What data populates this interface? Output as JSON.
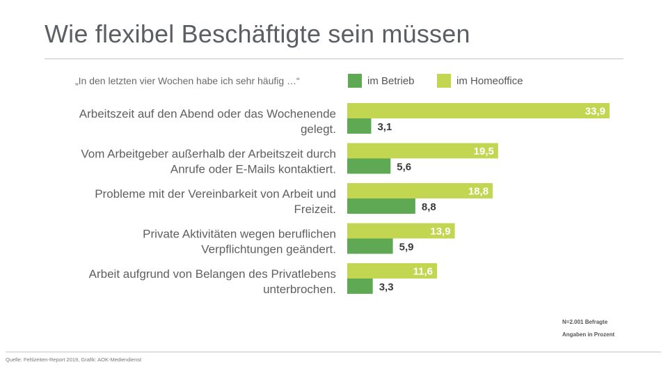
{
  "page": {
    "title": "Wie flexibel Beschäftigte sein müssen",
    "question": "„In den letzten vier Wochen habe ich sehr häufig …“",
    "note_n": "N=2.001 Befragte",
    "note_unit": "Angaben in Prozent",
    "source": "Quelle: Fehlzeiten-Report 2019, Grafik: AOK-Mediendienst"
  },
  "colors": {
    "betrieb": "#5fa955",
    "homeoffice": "#c3d651",
    "text": "#5f5f5f",
    "label_dark": "#3a3a3a"
  },
  "chart_data": {
    "type": "bar",
    "orientation": "horizontal",
    "categories": [
      [
        "Arbeitszeit auf den Abend oder das Wochenende",
        "gelegt."
      ],
      [
        "Vom Arbeitgeber außerhalb der Arbeitszeit durch",
        "Anrufe oder E-Mails kontaktiert."
      ],
      [
        "Probleme mit der Vereinbarkeit von Arbeit und",
        "Freizeit."
      ],
      [
        "Private Aktivitäten wegen beruflichen",
        "Verpflichtungen geändert."
      ],
      [
        "Arbeit aufgrund von Belangen des Privatlebens",
        "unterbrochen."
      ]
    ],
    "series": [
      {
        "name": "im Homeoffice",
        "values": [
          33.9,
          19.5,
          18.8,
          13.9,
          11.6
        ],
        "labels": [
          "33,9",
          "19,5",
          "18,8",
          "13,9",
          "11,6"
        ]
      },
      {
        "name": "im Betrieb",
        "values": [
          3.1,
          5.6,
          8.8,
          5.9,
          3.3
        ],
        "labels": [
          "3,1",
          "5,6",
          "8,8",
          "5,9",
          "3,3"
        ]
      }
    ],
    "legend": [
      {
        "name": "im Betrieb",
        "color": "#5fa955"
      },
      {
        "name": "im Homeoffice",
        "color": "#c3d651"
      }
    ],
    "legend_position": "top",
    "xlim": [
      0,
      34
    ],
    "grid": false
  }
}
